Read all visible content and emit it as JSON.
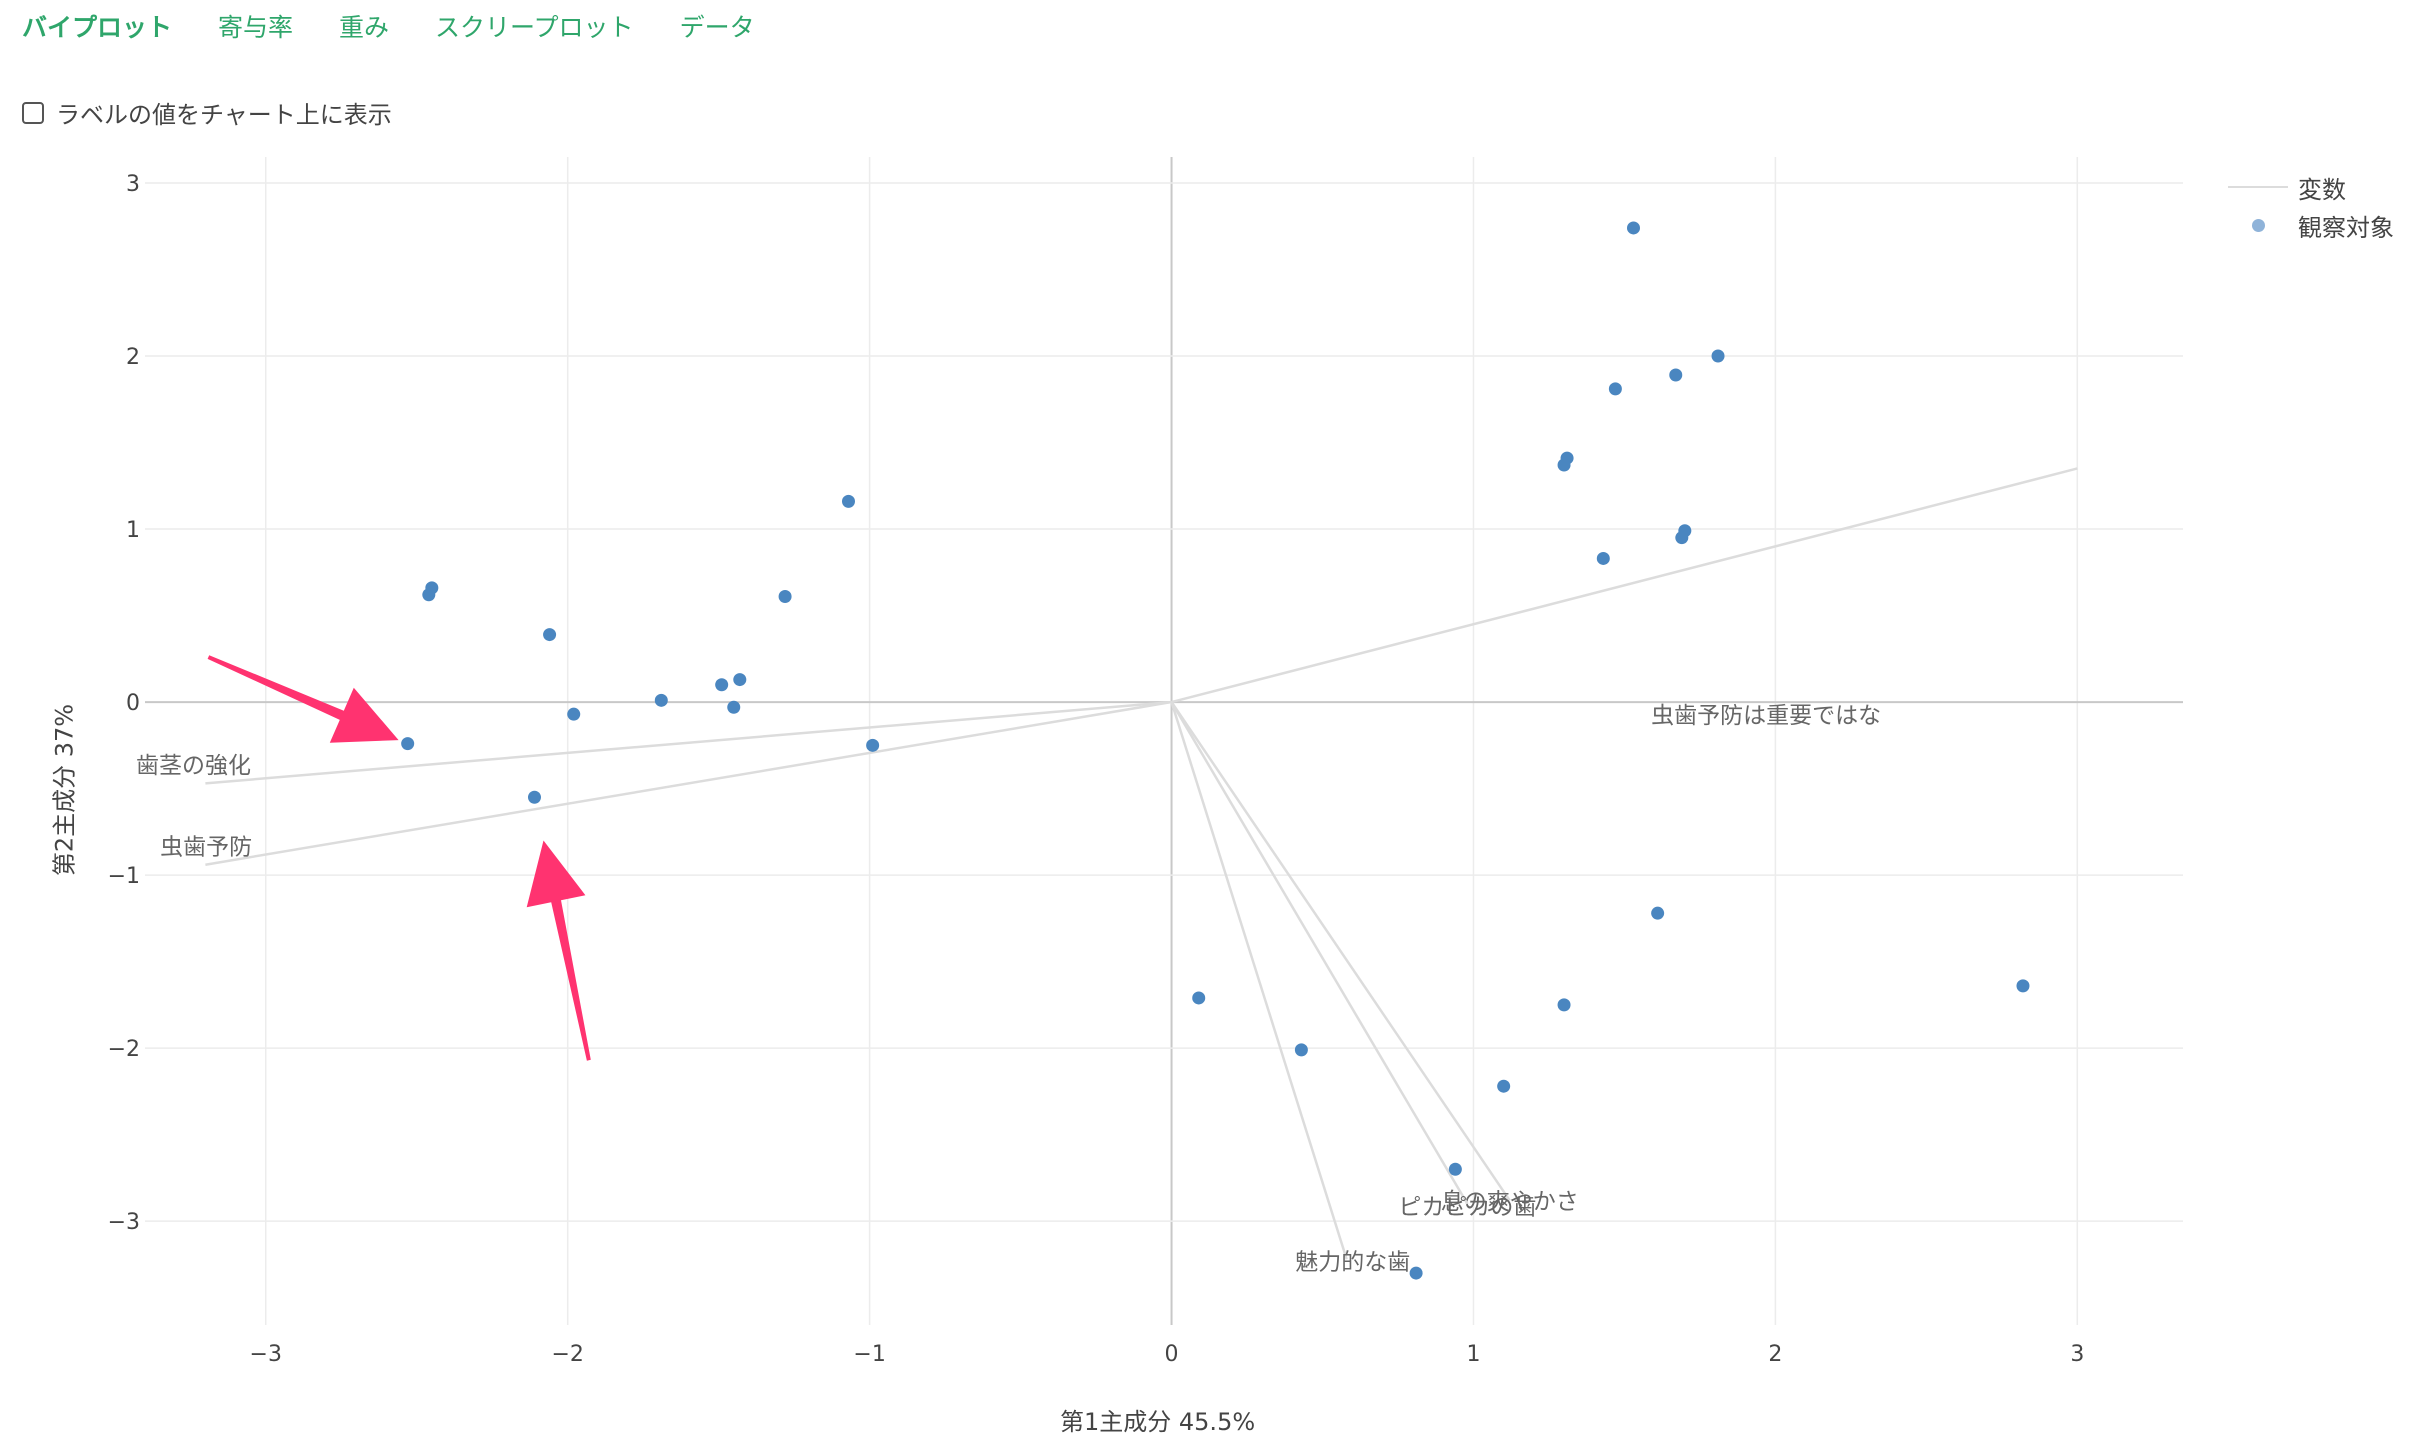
{
  "tabs": [
    {
      "label": "バイプロット",
      "active": true
    },
    {
      "label": "寄与率",
      "active": false
    },
    {
      "label": "重み",
      "active": false
    },
    {
      "label": "スクリープロット",
      "active": false
    },
    {
      "label": "データ",
      "active": false
    }
  ],
  "options": {
    "show_labels_checkbox": {
      "label": "ラベルの値をチャート上に表示",
      "checked": false
    }
  },
  "legend": {
    "variables": "変数",
    "observations": "観察対象"
  },
  "colors": {
    "tab": "#2fa66b",
    "point": "#4a86c0",
    "vector": "#dcdcdc",
    "annotation_arrow": "#ff3370"
  },
  "chart_data": {
    "type": "scatter",
    "title": "",
    "xlabel": "第1主成分 45.5%",
    "ylabel": "第2主成分 37%",
    "xlim": [
      -3.4,
      3.35
    ],
    "ylim": [
      -3.6,
      3.15
    ],
    "xticks": [
      -3,
      -2,
      -1,
      0,
      1,
      2,
      3
    ],
    "yticks": [
      -3,
      -2,
      -1,
      0,
      1,
      2,
      3
    ],
    "xtick_labels": [
      "−3",
      "−2",
      "−1",
      "0",
      "1",
      "2",
      "3"
    ],
    "ytick_labels": [
      "−3",
      "−2",
      "−1",
      "0",
      "1",
      "2",
      "3"
    ],
    "grid": true,
    "legend_position": "top-right",
    "observations": [
      {
        "x": -2.45,
        "y": 0.66
      },
      {
        "x": -2.46,
        "y": 0.62
      },
      {
        "x": -2.06,
        "y": 0.39
      },
      {
        "x": -1.98,
        "y": -0.07
      },
      {
        "x": -1.69,
        "y": 0.01
      },
      {
        "x": -1.49,
        "y": 0.1
      },
      {
        "x": -1.43,
        "y": 0.13
      },
      {
        "x": -1.45,
        "y": -0.03
      },
      {
        "x": -1.28,
        "y": 0.61
      },
      {
        "x": -1.07,
        "y": 1.16
      },
      {
        "x": -0.99,
        "y": -0.25
      },
      {
        "x": -2.53,
        "y": -0.24
      },
      {
        "x": -2.11,
        "y": -0.55
      },
      {
        "x": 1.53,
        "y": 2.74
      },
      {
        "x": 1.81,
        "y": 2.0
      },
      {
        "x": 1.67,
        "y": 1.89
      },
      {
        "x": 1.47,
        "y": 1.81
      },
      {
        "x": 1.31,
        "y": 1.41
      },
      {
        "x": 1.3,
        "y": 1.37
      },
      {
        "x": 1.7,
        "y": 0.99
      },
      {
        "x": 1.69,
        "y": 0.95
      },
      {
        "x": 1.43,
        "y": 0.83
      },
      {
        "x": 1.61,
        "y": -1.22
      },
      {
        "x": 2.82,
        "y": -1.64
      },
      {
        "x": 0.09,
        "y": -1.71
      },
      {
        "x": 0.43,
        "y": -2.01
      },
      {
        "x": 1.3,
        "y": -1.75
      },
      {
        "x": 1.1,
        "y": -2.22
      },
      {
        "x": 0.94,
        "y": -2.7
      },
      {
        "x": 0.81,
        "y": -3.3
      }
    ],
    "variables": [
      {
        "name": "虫歯予防は重要ではな",
        "x": 3.0,
        "y": 1.35,
        "label_anchor": "end",
        "label_dx": 2.35,
        "label_dy": -0.12
      },
      {
        "name": "歯茎の強化",
        "x": -3.2,
        "y": -0.47,
        "label_anchor": "start",
        "label_dx": -3.43,
        "label_dy": -0.41
      },
      {
        "name": "虫歯予防",
        "x": -3.2,
        "y": -0.94,
        "label_anchor": "start",
        "label_dx": -3.35,
        "label_dy": -0.88
      },
      {
        "name": "息の爽やかさ",
        "x": 1.12,
        "y": -2.88,
        "label_anchor": "middle",
        "label_dx": 1.12,
        "label_dy": -2.93
      },
      {
        "name": "ピカピカの歯",
        "x": 0.98,
        "y": -2.9,
        "label_anchor": "middle",
        "label_dx": 0.98,
        "label_dy": -2.96
      },
      {
        "name": "魅力的な歯",
        "x": 0.58,
        "y": -3.22,
        "label_anchor": "middle",
        "label_dx": 0.6,
        "label_dy": -3.28
      }
    ],
    "annotations": [
      {
        "type": "arrow",
        "from": [
          -3.19,
          0.26
        ],
        "to": [
          -2.56,
          -0.22
        ]
      },
      {
        "type": "arrow",
        "from": [
          -1.93,
          -2.07
        ],
        "to": [
          -2.08,
          -0.8
        ]
      }
    ]
  }
}
